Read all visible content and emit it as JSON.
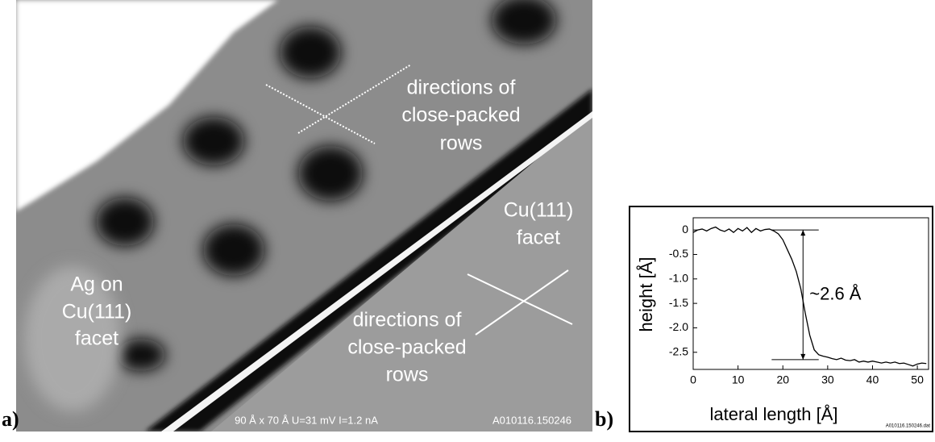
{
  "panel_a": {
    "label": "a)",
    "annotations": [
      [
        "directions of",
        "close-packed",
        "rows"
      ],
      [
        "directions of",
        "close-packed",
        "rows"
      ],
      [
        "Cu(111)",
        "facet"
      ],
      [
        "Ag on",
        "Cu(111)",
        "facet"
      ]
    ],
    "footer": [
      "90 Å x 70 Å  U=31 mV  I=1.2 nA",
      "A010116.150246"
    ]
  },
  "panel_b": {
    "label": "b)"
  },
  "chart_data": {
    "type": "line",
    "xlabel": "lateral length [Å]",
    "ylabel": "height [Å]",
    "annotation": "~2.6 Å",
    "file": "A010116.150246.dat",
    "x": [
      0,
      1,
      2,
      3,
      4,
      5,
      6,
      7,
      8,
      9,
      10,
      11,
      12,
      13,
      14,
      15,
      16,
      17,
      18,
      19,
      20,
      21,
      22,
      23,
      24,
      25,
      26,
      27,
      28,
      29,
      30,
      31,
      32,
      33,
      34,
      35,
      36,
      37,
      38,
      39,
      40,
      41,
      42,
      43,
      44,
      45,
      46,
      47,
      48,
      49,
      50,
      51,
      52
    ],
    "values": [
      -0.05,
      0,
      0.02,
      -0.02,
      0.03,
      0.06,
      0,
      -0.03,
      0.02,
      -0.05,
      0.03,
      -0.02,
      0.05,
      -0.05,
      0.03,
      -0.02,
      0.01,
      0.02,
      -0.02,
      -0.08,
      -0.2,
      -0.4,
      -0.6,
      -0.85,
      -1.2,
      -1.7,
      -2.15,
      -2.45,
      -2.55,
      -2.58,
      -2.6,
      -2.63,
      -2.65,
      -2.62,
      -2.66,
      -2.67,
      -2.65,
      -2.7,
      -2.68,
      -2.7,
      -2.68,
      -2.7,
      -2.72,
      -2.7,
      -2.72,
      -2.7,
      -2.73,
      -2.72,
      -2.75,
      -2.78,
      -2.74,
      -2.72,
      -2.73
    ],
    "color": "#000000",
    "xlim": [
      0,
      52.5
    ],
    "ylim": [
      -2.85,
      0.25
    ],
    "xticks": [
      0,
      10,
      20,
      30,
      40,
      50
    ],
    "yticks": [
      0,
      -0.5,
      {
        "value": -1,
        "label": "-1.0"
      },
      -1.5,
      {
        "value": -2,
        "label": "-2.0"
      },
      -2.5
    ],
    "step": {
      "top": 0,
      "bottom": -2.65,
      "x": 24.5,
      "from": 17.5,
      "to": 28
    }
  }
}
